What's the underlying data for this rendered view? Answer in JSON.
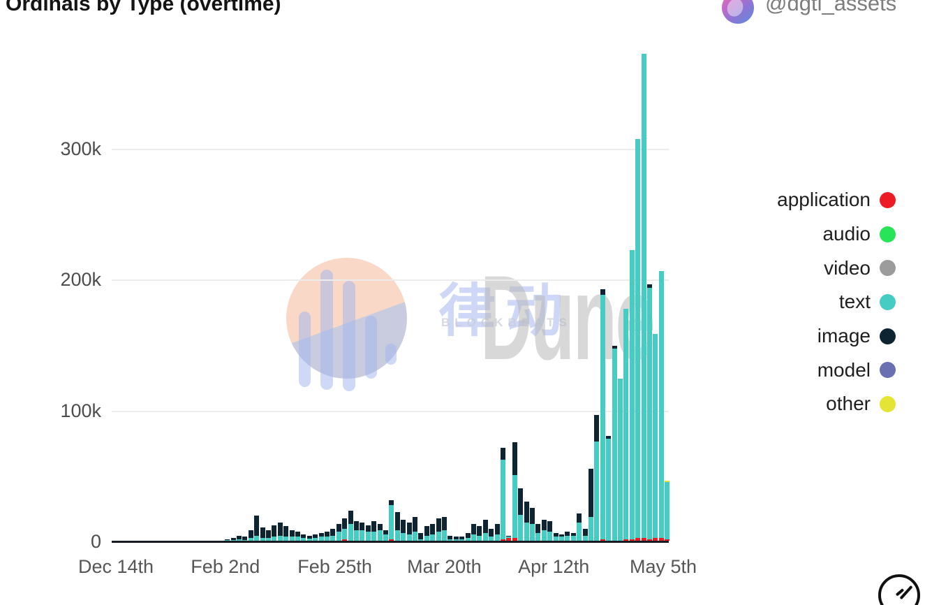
{
  "header": {
    "title": "Ordinals by Type (overtime)",
    "account_handle": "@dgtl_assets",
    "avatar": "pink-purple-portrait-avatar"
  },
  "watermark": {
    "brand_text": "Dune",
    "cjk_text": "律动",
    "small_text": "BLOCKBEATS",
    "circle_top_color": "#f9d6c5",
    "circle_bottom_color": "#c6c9dd",
    "bars_color": "#9fb3ee"
  },
  "corner_icon": "clock-circle-icon",
  "chart_data": {
    "type": "bar",
    "stacked": true,
    "title": "Ordinals by Type (overtime)",
    "grid": "horizontal",
    "legend_position": "right",
    "x_tick_labels": [
      "Dec 14th",
      "Feb 2nd",
      "Feb 25th",
      "Mar 20th",
      "Apr 12th",
      "May 5th"
    ],
    "y_tick_labels": [
      "0",
      "100k",
      "200k",
      "300k"
    ],
    "y_tick_values": [
      0,
      100000,
      200000,
      300000
    ],
    "ylim": [
      0,
      380000
    ],
    "value_unit": "inscriptions",
    "value_multiplier": 1000,
    "stack_order_bottom_to_top": [
      "application",
      "audio",
      "video",
      "text",
      "image",
      "model",
      "other"
    ],
    "series": [
      {
        "name": "application",
        "color": "#ed1c24",
        "values": [
          0,
          0,
          0,
          0,
          0,
          0,
          0,
          0,
          0,
          0,
          0,
          0,
          0,
          0,
          0,
          0,
          0,
          0,
          0,
          0,
          0,
          0,
          0,
          0,
          0,
          0,
          0,
          0,
          0,
          0,
          0,
          0,
          0,
          0,
          0,
          0,
          0,
          0,
          0,
          1,
          0,
          0,
          0,
          0,
          0,
          0,
          0,
          1,
          0,
          0,
          0,
          0,
          0,
          0,
          0,
          0,
          0,
          0,
          0,
          0,
          0,
          0,
          0,
          0,
          0,
          0,
          1,
          2,
          2,
          0,
          0,
          0,
          0,
          0,
          0,
          0,
          0,
          0,
          0,
          0,
          0,
          0,
          0,
          1,
          0,
          0,
          0,
          1,
          1,
          2,
          2,
          1,
          2,
          2,
          1
        ]
      },
      {
        "name": "audio",
        "color": "#27e556",
        "values": [
          0,
          0,
          0,
          0,
          0,
          0,
          0,
          0,
          0,
          0,
          0,
          0,
          0,
          0,
          0,
          0,
          0,
          0,
          0,
          0,
          0,
          0,
          0,
          0,
          0,
          0,
          0,
          0,
          0,
          0,
          0,
          0,
          0,
          0,
          0,
          0,
          0,
          0,
          0,
          0,
          0,
          0,
          0,
          0,
          0,
          0,
          0,
          0,
          0,
          0,
          0,
          0,
          0,
          0,
          0,
          0,
          0,
          0,
          0,
          0,
          0,
          0,
          0,
          0,
          0,
          0,
          0,
          0,
          0,
          0,
          0,
          0,
          0,
          0,
          0,
          0,
          0,
          0,
          0,
          0,
          0,
          0,
          0,
          0,
          0,
          0,
          0,
          0,
          0,
          0,
          0,
          0,
          0,
          0,
          0
        ]
      },
      {
        "name": "video",
        "color": "#9c9c9c",
        "values": [
          0,
          0,
          0,
          0,
          0,
          0,
          0,
          0,
          0,
          0,
          0,
          0,
          0,
          0,
          0,
          0,
          0,
          0,
          0,
          0,
          0,
          0,
          0,
          0,
          0,
          0,
          0,
          0,
          0,
          0,
          0,
          0,
          0,
          0,
          0,
          0,
          0,
          0,
          0,
          0,
          0,
          0,
          0,
          0,
          0,
          0,
          0,
          0,
          0,
          0,
          0,
          0,
          0,
          0,
          0,
          0,
          0,
          0,
          0,
          0,
          0,
          0,
          0,
          0,
          0,
          0,
          0,
          0,
          0,
          0,
          0,
          0,
          0,
          0,
          0,
          0,
          0,
          0,
          0,
          0,
          0,
          0,
          0,
          0,
          0,
          0,
          0,
          0,
          0,
          0,
          0,
          0,
          0,
          0,
          0
        ]
      },
      {
        "name": "text",
        "color": "#45ccc3",
        "values": [
          0,
          0,
          0,
          0,
          0,
          0,
          0,
          0,
          0,
          0,
          0,
          0,
          0,
          0,
          0,
          0,
          0,
          0,
          0,
          0.2,
          0.5,
          1,
          0.5,
          2,
          4,
          2,
          2,
          3,
          4,
          3,
          3,
          3,
          2,
          1.5,
          2,
          3,
          3,
          4,
          7,
          8,
          13,
          8,
          8,
          7,
          7,
          8,
          5,
          26,
          8,
          6,
          5,
          7,
          1,
          4,
          5,
          7,
          8,
          1,
          1,
          1,
          2,
          5,
          4,
          6,
          3,
          5,
          61,
          1,
          48,
          20,
          14,
          13,
          6,
          8,
          7,
          3,
          3,
          4,
          4,
          14,
          4,
          18,
          76,
          187,
          78,
          147,
          124,
          176,
          221,
          305,
          370,
          192,
          156,
          204,
          44
        ]
      },
      {
        "name": "image",
        "color": "#0e2433",
        "values": [
          0,
          0,
          0,
          0,
          0,
          0,
          0,
          0,
          0,
          0,
          0,
          0,
          0,
          0,
          0,
          0,
          0,
          0,
          0,
          0.4,
          1.5,
          3,
          2.5,
          6,
          15,
          8,
          6,
          9,
          10,
          8,
          5,
          4,
          3,
          2.5,
          3,
          3,
          4,
          5,
          6,
          8,
          10,
          7,
          6,
          5,
          8,
          5,
          3,
          4,
          14,
          10,
          9,
          11,
          5,
          7,
          8,
          10,
          10,
          3,
          2,
          2,
          4,
          8,
          7,
          10,
          6,
          8,
          9,
          1,
          25,
          20,
          16,
          12,
          7,
          8,
          8,
          3,
          2,
          3,
          2,
          7,
          5,
          37,
          20,
          4,
          2,
          2,
          0,
          0,
          0,
          0,
          0,
          3,
          0,
          0,
          0
        ]
      },
      {
        "name": "model",
        "color": "#6a6fb1",
        "values": [
          0,
          0,
          0,
          0,
          0,
          0,
          0,
          0,
          0,
          0,
          0,
          0,
          0,
          0,
          0,
          0,
          0,
          0,
          0,
          0,
          0,
          0,
          0,
          0,
          0,
          0,
          0,
          0,
          0,
          0,
          0,
          0,
          0,
          0,
          0,
          0,
          0,
          0,
          0,
          0,
          0,
          0,
          0,
          0,
          0,
          0,
          0,
          0,
          0,
          0,
          0,
          0,
          0,
          0,
          0,
          0,
          0,
          0,
          0,
          0,
          0,
          0,
          0,
          0,
          0,
          0,
          0,
          0,
          0,
          0,
          0,
          0,
          0,
          0,
          0,
          0,
          0,
          0,
          0,
          0,
          0,
          0,
          0,
          0,
          0,
          0,
          0,
          0,
          0,
          0,
          0,
          0,
          0,
          0,
          0
        ]
      },
      {
        "name": "other",
        "color": "#e4e434",
        "values": [
          0,
          0,
          0,
          0,
          0,
          0,
          0,
          0,
          0,
          0,
          0,
          0,
          0,
          0,
          0,
          0,
          0,
          0,
          0,
          0,
          0,
          0,
          0,
          0,
          0,
          0,
          0,
          0,
          0,
          0,
          0,
          0,
          0,
          0,
          0,
          0,
          0,
          0,
          0,
          0,
          0,
          0,
          0,
          0,
          0,
          0,
          0,
          0,
          0,
          0,
          0,
          0,
          0,
          0,
          0,
          0,
          0,
          0,
          0,
          0,
          0,
          0,
          0,
          0,
          0,
          0,
          0,
          0,
          0,
          0,
          0,
          0,
          0,
          0,
          0,
          0,
          0,
          0,
          0,
          0,
          0,
          0,
          0,
          0,
          0,
          0,
          0,
          0,
          0,
          0,
          0,
          0,
          0,
          0,
          1
        ]
      }
    ]
  }
}
